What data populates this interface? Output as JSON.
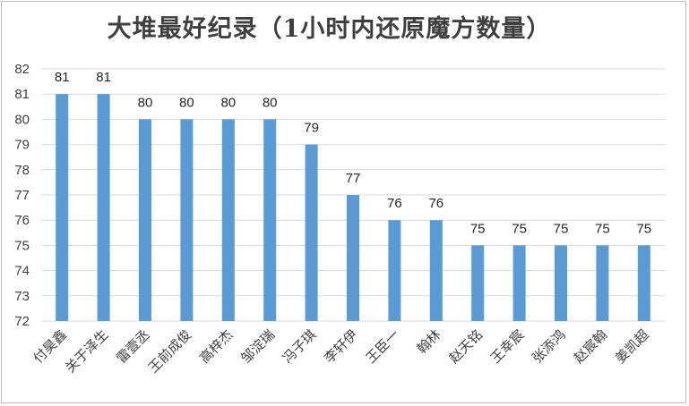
{
  "chart_data": {
    "type": "bar",
    "title": "大堆最好纪录（1小时内还原魔方数量）",
    "xlabel": "",
    "ylabel": "",
    "ylim": [
      72,
      82
    ],
    "yticks": [
      72,
      73,
      74,
      75,
      76,
      77,
      78,
      79,
      80,
      81,
      82
    ],
    "grid": true,
    "legend": "none",
    "bar_color": "#5b9bd5",
    "categories": [
      "付昊鑫",
      "关于泽生",
      "雷壹丞",
      "王前成俊",
      "高梓杰",
      "邹淀瑞",
      "冯子琪",
      "李轩伊",
      "王臣一",
      "翰林",
      "赵天铭",
      "王幸宸",
      "张添鸿",
      "赵宸翰",
      "姜凯超"
    ],
    "values": [
      81,
      81,
      80,
      80,
      80,
      80,
      79,
      77,
      76,
      76,
      75,
      75,
      75,
      75,
      75
    ],
    "data_labels": [
      "81",
      "81",
      "80",
      "80",
      "80",
      "80",
      "79",
      "77",
      "76",
      "76",
      "75",
      "75",
      "75",
      "75",
      "75"
    ]
  }
}
